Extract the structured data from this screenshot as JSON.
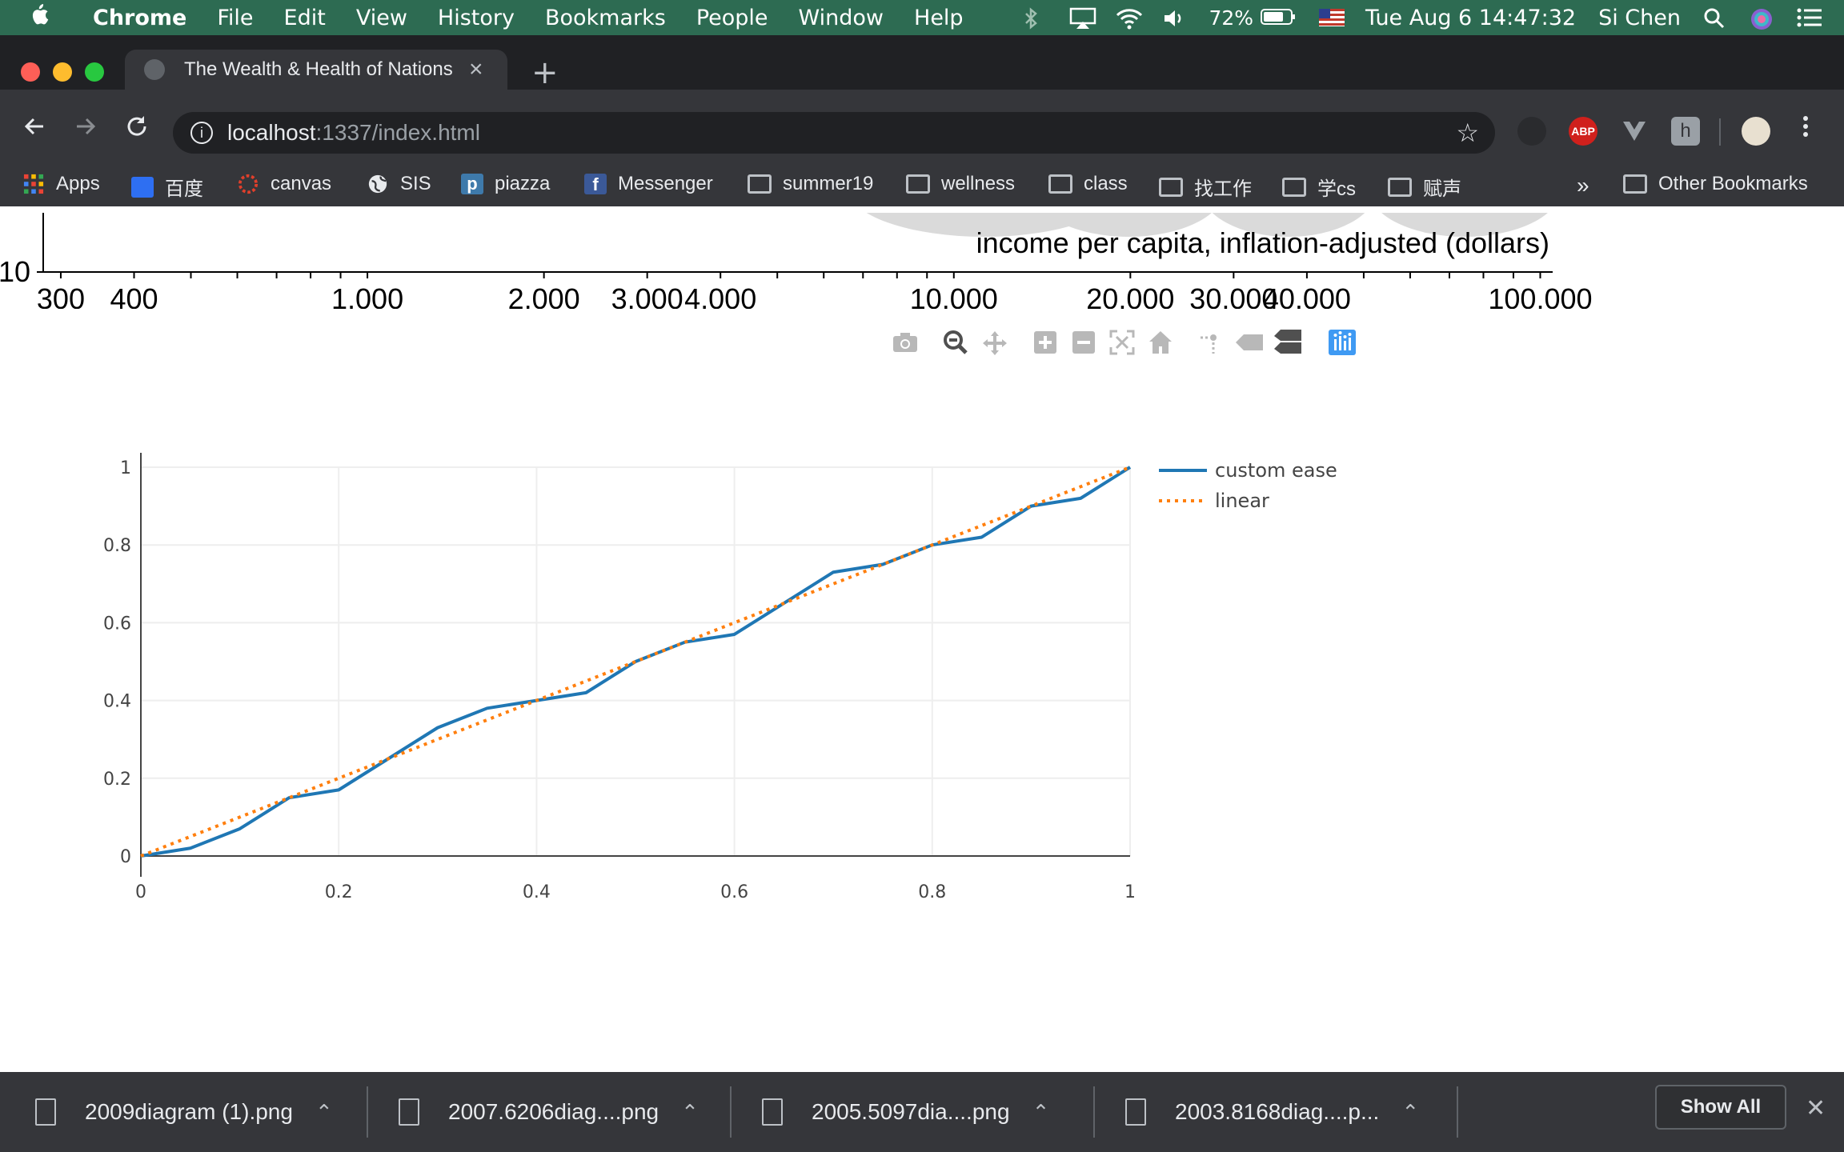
{
  "menubar": {
    "app": "Chrome",
    "items": [
      "File",
      "Edit",
      "View",
      "History",
      "Bookmarks",
      "People",
      "Window",
      "Help"
    ],
    "battery": "72%",
    "datetime": "Tue Aug 6  14:47:32",
    "user": "Si Chen"
  },
  "tab": {
    "title": "The Wealth & Health of Nations",
    "close": "×"
  },
  "omnibox": {
    "host": "localhost",
    "path": ":1337/index.html"
  },
  "bookmarks": {
    "items": [
      "Apps",
      "百度",
      "canvas",
      "SIS",
      "piazza",
      "Messenger",
      "summer19",
      "wellness",
      "class",
      "找工作",
      "学cs",
      "赋声"
    ],
    "overflow": "»",
    "other": "Other Bookmarks"
  },
  "top_chart": {
    "xlabel": "income per capita, inflation-adjusted (dollars)",
    "y_tick_partial": "10",
    "x_ticks": [
      "300",
      "400",
      "1,000",
      "2,000",
      "3,000",
      "4,000",
      "10,000",
      "20,000",
      "30,000",
      "40,000",
      "100,000"
    ],
    "x_tick_values": [
      300,
      400,
      1000,
      2000,
      3000,
      4000,
      10000,
      20000,
      30000,
      40000,
      100000
    ],
    "x_domain": [
      280,
      105000
    ],
    "scale": "log"
  },
  "modebar": {
    "icons": [
      "camera-icon",
      "zoom-icon",
      "pan-icon",
      "zoom-in-icon",
      "zoom-out-icon",
      "autoscale-icon",
      "reset-axes-icon",
      "spike-lines-icon",
      "hover-closest-icon",
      "hover-compare-icon",
      "plotly-logo-icon"
    ]
  },
  "chart_data": {
    "type": "line",
    "title": "",
    "xlabel": "",
    "ylabel": "",
    "xlim": [
      0,
      1
    ],
    "ylim": [
      0,
      1
    ],
    "x_ticks": [
      "0",
      "0.2",
      "0.4",
      "0.6",
      "0.8",
      "1"
    ],
    "y_ticks": [
      "0",
      "0.2",
      "0.4",
      "0.6",
      "0.8",
      "1"
    ],
    "grid": true,
    "legend_position": "top-right",
    "x": [
      0,
      0.05,
      0.1,
      0.15,
      0.2,
      0.25,
      0.3,
      0.35,
      0.4,
      0.45,
      0.5,
      0.55,
      0.6,
      0.65,
      0.7,
      0.75,
      0.8,
      0.85,
      0.9,
      0.95,
      1.0
    ],
    "series": [
      {
        "name": "custom ease",
        "color": "#1f77b4",
        "dash": "solid",
        "values": [
          0,
          0.02,
          0.07,
          0.15,
          0.17,
          0.25,
          0.33,
          0.38,
          0.4,
          0.42,
          0.5,
          0.55,
          0.57,
          0.65,
          0.73,
          0.75,
          0.8,
          0.82,
          0.9,
          0.92,
          1.0
        ]
      },
      {
        "name": "linear",
        "color": "#ff7f0e",
        "dash": "dot",
        "values": [
          0,
          0.05,
          0.1,
          0.15,
          0.2,
          0.25,
          0.3,
          0.35,
          0.4,
          0.45,
          0.5,
          0.55,
          0.6,
          0.65,
          0.7,
          0.75,
          0.8,
          0.85,
          0.9,
          0.95,
          1.0
        ]
      }
    ]
  },
  "downloads": {
    "items": [
      "2009diagram (1).png",
      "2007.6206diag....png",
      "2005.5097dia....png",
      "2003.8168diag....p..."
    ],
    "show_all": "Show All",
    "close": "✕"
  }
}
